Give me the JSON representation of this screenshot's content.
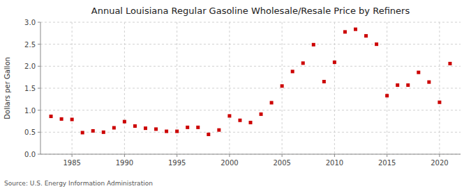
{
  "chart_data": {
    "type": "scatter",
    "title": "Annual Louisiana Regular Gasoline Wholesale/Resale Price by Refiners",
    "ylabel": "Dollars per Gallon",
    "annotations": [
      "Source: U.S. Energy Information Administration"
    ],
    "x": [
      1983,
      1984,
      1985,
      1986,
      1987,
      1988,
      1989,
      1990,
      1991,
      1992,
      1993,
      1994,
      1995,
      1996,
      1997,
      1998,
      1999,
      2000,
      2001,
      2002,
      2003,
      2004,
      2005,
      2006,
      2007,
      2008,
      2009,
      2010,
      2011,
      2012,
      2013,
      2014,
      2015,
      2016,
      2017,
      2018,
      2019,
      2020,
      2021
    ],
    "values": [
      0.86,
      0.8,
      0.79,
      0.49,
      0.53,
      0.5,
      0.6,
      0.74,
      0.64,
      0.59,
      0.57,
      0.52,
      0.52,
      0.61,
      0.61,
      0.45,
      0.55,
      0.87,
      0.77,
      0.72,
      0.91,
      1.17,
      1.55,
      1.88,
      2.07,
      2.49,
      1.65,
      2.09,
      2.78,
      2.84,
      2.69,
      2.5,
      1.33,
      1.57,
      1.57,
      1.86,
      1.64,
      1.18,
      2.06
    ],
    "color": "#cc0000",
    "marker": "square",
    "xlim": [
      1982,
      2022
    ],
    "ylim": [
      0.0,
      3.0
    ],
    "xticks": [
      1985,
      1990,
      1995,
      2000,
      2005,
      2010,
      2015,
      2020
    ],
    "yticks": [
      {
        "value": 0.0,
        "label": "0.0"
      },
      0.5,
      {
        "value": 1.0,
        "label": "1.0"
      },
      1.5,
      {
        "value": 2.0,
        "label": "2.0"
      },
      2.5,
      {
        "value": 3.0,
        "label": "3.0"
      }
    ],
    "grid": true
  }
}
